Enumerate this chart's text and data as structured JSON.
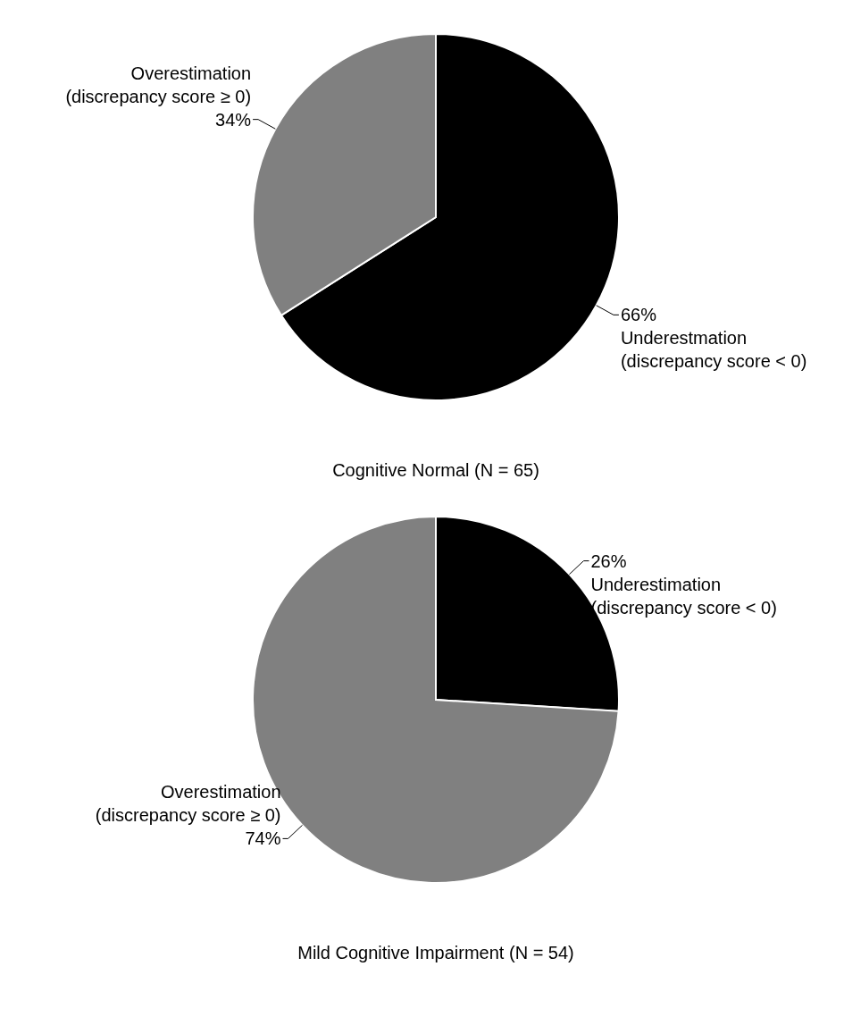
{
  "chart_data": [
    {
      "type": "pie",
      "title": "Cognitive Normal (N = 65)",
      "categories": [
        "Underestmation (discrepancy score < 0)",
        "Overestimation (discrepancy score ≥ 0)"
      ],
      "values": [
        66,
        34
      ],
      "colors": [
        "#000000",
        "#808080"
      ],
      "value_labels": [
        "66%",
        "34%"
      ]
    },
    {
      "type": "pie",
      "title": "Mild Cognitive Impairment (N = 54)",
      "categories": [
        "Underestimation (discrepancy score < 0)",
        "Overestimation (discrepancy score ≥ 0)"
      ],
      "values": [
        26,
        74
      ],
      "colors": [
        "#000000",
        "#808080"
      ],
      "value_labels": [
        "26%",
        "74%"
      ]
    }
  ]
}
